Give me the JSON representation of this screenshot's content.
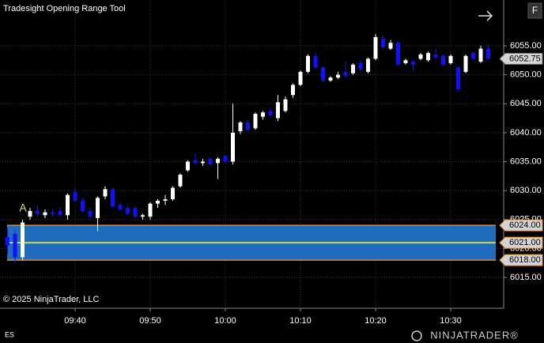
{
  "title": "Tradesight Opening Range Tool",
  "copyright": "© 2025 NinjaTrader, LLC",
  "instrument": "ES",
  "brand": "NINJATRADER®",
  "button": "F",
  "chart_data": {
    "type": "candlestick",
    "categories": [
      null,
      null,
      null,
      null,
      null,
      null,
      null,
      null,
      null,
      "09:40",
      null,
      null,
      null,
      null,
      null,
      null,
      null,
      null,
      null,
      "09:50",
      null,
      null,
      null,
      null,
      null,
      null,
      null,
      null,
      null,
      "10:00",
      null,
      null,
      null,
      null,
      null,
      null,
      null,
      null,
      null,
      "10:10",
      null,
      null,
      null,
      null,
      null,
      null,
      null,
      null,
      null,
      "10:20",
      null,
      null,
      null,
      null,
      null,
      null,
      null,
      null,
      null,
      "10:30",
      null,
      null,
      null,
      null,
      null
    ],
    "open": [
      6022,
      6022.5,
      6018.5,
      6025.5,
      6026.5,
      6025.75,
      6026.25,
      6026.5,
      6025.75,
      6029.75,
      6028.25,
      6026.5,
      6025.25,
      6029,
      6030.25,
      6027.5,
      6027,
      6027,
      6025.5,
      6025.5,
      6027.75,
      6028.25,
      6028.5,
      6030.75,
      6033.5,
      6035.25,
      6034.75,
      6035.5,
      6034.75,
      6036,
      6035,
      6040.25,
      6041.75,
      6040.75,
      6042.75,
      6043.75,
      6042.5,
      6043.75,
      6046.5,
      6048.25,
      6050.5,
      6053.25,
      6051.25,
      6049,
      6049.5,
      6050.5,
      6050.25,
      6052,
      6050.5,
      6052.75,
      6056.25,
      6054.5,
      6055.5,
      6052,
      6052.25,
      6052.75,
      6052.5,
      6053.5,
      6053.25,
      6052,
      6051.25,
      6050.5,
      6053.75,
      6052.25,
      6054.5
    ],
    "high": [
      6023.5,
      6023,
      6025,
      6027,
      6027.5,
      6026.75,
      6026.75,
      6027,
      6029.5,
      6030.5,
      6028.75,
      6027,
      6029,
      6030.75,
      6030.5,
      6028,
      6027.5,
      6027.25,
      6026,
      6028,
      6028.5,
      6029.25,
      6030.75,
      6033,
      6035.25,
      6036.5,
      6035.5,
      6035.75,
      6035.75,
      6036.25,
      6045,
      6042,
      6042.25,
      6043.5,
      6043.75,
      6044.25,
      6046.5,
      6046.25,
      6048.5,
      6050.75,
      6053.5,
      6053.75,
      6051.5,
      6049.75,
      6050.5,
      6052.25,
      6052,
      6052.5,
      6053,
      6057,
      6056.75,
      6056,
      6055.75,
      6052.75,
      6052.5,
      6053.75,
      6054,
      6054.5,
      6053.5,
      6053.5,
      6051.5,
      6053.5,
      6054,
      6055,
      6055.25
    ],
    "low": [
      6019,
      6017.5,
      6018,
      6025,
      6025.5,
      6025.25,
      6025.5,
      6025.5,
      6025,
      6028,
      6026.25,
      6025,
      6023,
      6028.5,
      6027,
      6026.5,
      6025.75,
      6025.25,
      6025,
      6025,
      6027,
      6027.5,
      6028.25,
      6030.5,
      6033.25,
      6034.5,
      6034.25,
      6034.25,
      6032,
      6034.75,
      6034.5,
      6039.75,
      6040.25,
      6040.5,
      6042.25,
      6042.75,
      6042,
      6043.5,
      6046,
      6048,
      6050.25,
      6051,
      6048.75,
      6048.75,
      6049.25,
      6049.5,
      6050,
      6050.75,
      6050.25,
      6052.5,
      6054.5,
      6054.25,
      6051.5,
      6051.75,
      6050.5,
      6052.5,
      6052.25,
      6052.75,
      6051.5,
      6051.75,
      6047,
      6050.25,
      6052.5,
      6052,
      6052.5
    ],
    "close": [
      6020.5,
      6018.5,
      6024.5,
      6026.5,
      6026,
      6026.25,
      6026,
      6025.75,
      6029.25,
      6028.25,
      6026.5,
      6025.5,
      6028.75,
      6030.25,
      6027.25,
      6026.75,
      6026,
      6025.5,
      6025.75,
      6027.75,
      6028.25,
      6028.5,
      6030.5,
      6032.75,
      6035,
      6034.75,
      6035,
      6034.5,
      6035.5,
      6035,
      6040,
      6041.75,
      6040.5,
      6043.25,
      6043.5,
      6043,
      6045.25,
      6045.75,
      6048.25,
      6050.5,
      6053.25,
      6051.25,
      6049,
      6049.5,
      6050,
      6049.75,
      6051.75,
      6051,
      6052.75,
      6056.5,
      6054.75,
      6055.5,
      6051.75,
      6052.5,
      6051.75,
      6053.5,
      6053.75,
      6053,
      6051.75,
      6053.25,
      6047.5,
      6053.25,
      6052.75,
      6054.5,
      6052.75
    ],
    "up_color": "#ffffff",
    "down_color": "#1010ff",
    "ylim": [
      6009.7,
      6062.9
    ],
    "yticks": [
      {
        "value": 6015,
        "label": "6015.00"
      },
      {
        "value": 6020,
        "label": "6020.00"
      },
      {
        "value": 6025,
        "label": "6025.00"
      },
      {
        "value": 6030,
        "label": "6030.00"
      },
      {
        "value": 6035,
        "label": "6035.00"
      },
      {
        "value": 6040,
        "label": "6040.00"
      },
      {
        "value": 6045,
        "label": "6045.00"
      },
      {
        "value": 6050,
        "label": "6050.00"
      },
      {
        "value": 6055,
        "label": "6055.00"
      }
    ],
    "grid": true,
    "opening_range": {
      "values": [
        6024,
        6021,
        6018
      ],
      "value_labels": [
        "6024.00",
        "6021.00",
        "6018.00"
      ],
      "color": "#1f6bbd",
      "border_color": "#e08a2a",
      "mid_color": "#c8d84a"
    },
    "last_price": 6052.75,
    "annotation": "A"
  }
}
